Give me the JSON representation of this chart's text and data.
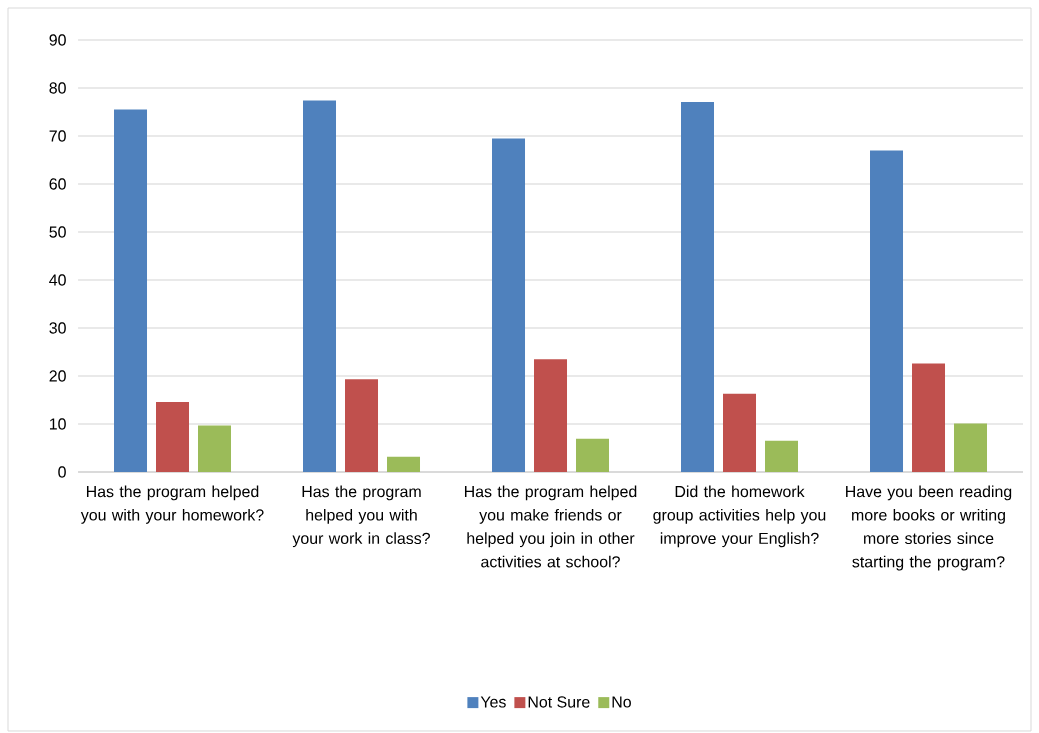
{
  "chart_data": {
    "type": "bar",
    "categories": [
      "Has the program helped you with your homework?",
      "Has the program helped you with your work in class?",
      "Has the program helped you make friends or helped you join in other activities at school?",
      "Did the homework group activities help you improve your English?",
      "Have you been reading more books or writing more stories since starting the program?"
    ],
    "series": [
      {
        "name": "Yes",
        "color": "#4f81bd",
        "values": [
          75.5,
          77.4,
          69.5,
          77.1,
          67.0
        ]
      },
      {
        "name": "Not Sure",
        "color": "#c0504d",
        "values": [
          14.6,
          19.3,
          23.5,
          16.3,
          22.6
        ]
      },
      {
        "name": "No",
        "color": "#9bbb59",
        "values": [
          9.7,
          3.2,
          6.9,
          6.5,
          10.1
        ]
      }
    ],
    "ylim": [
      0,
      90
    ],
    "yticks": [
      0,
      10,
      20,
      30,
      40,
      50,
      60,
      70,
      80,
      90
    ],
    "grid": "y",
    "legend": "bottom"
  }
}
